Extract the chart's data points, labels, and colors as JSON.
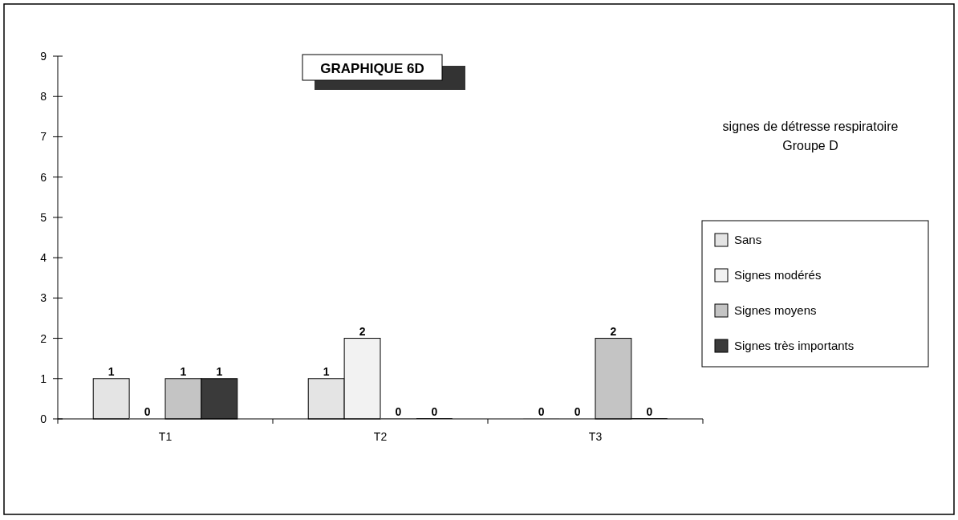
{
  "chart_data": {
    "type": "bar",
    "title": "GRAPHIQUE 6D",
    "subtitle": "signes de détresse respiratoire\nGroupe D",
    "categories": [
      "T1",
      "T2",
      "T3"
    ],
    "series": [
      {
        "name": "Sans",
        "color": "#e4e4e4",
        "values": [
          1,
          1,
          0
        ]
      },
      {
        "name": "Signes modérés",
        "color": "#f2f2f2",
        "values": [
          0,
          2,
          0
        ]
      },
      {
        "name": "Signes moyens",
        "color": "#c4c4c4",
        "values": [
          1,
          0,
          2
        ]
      },
      {
        "name": "Signes très importants",
        "color": "#3a3a3a",
        "values": [
          1,
          0,
          0
        ]
      }
    ],
    "ylim": [
      0,
      9
    ],
    "yticks": [
      0,
      1,
      2,
      3,
      4,
      5,
      6,
      7,
      8,
      9
    ],
    "data_labels": true,
    "grid": false,
    "legend": "right"
  }
}
